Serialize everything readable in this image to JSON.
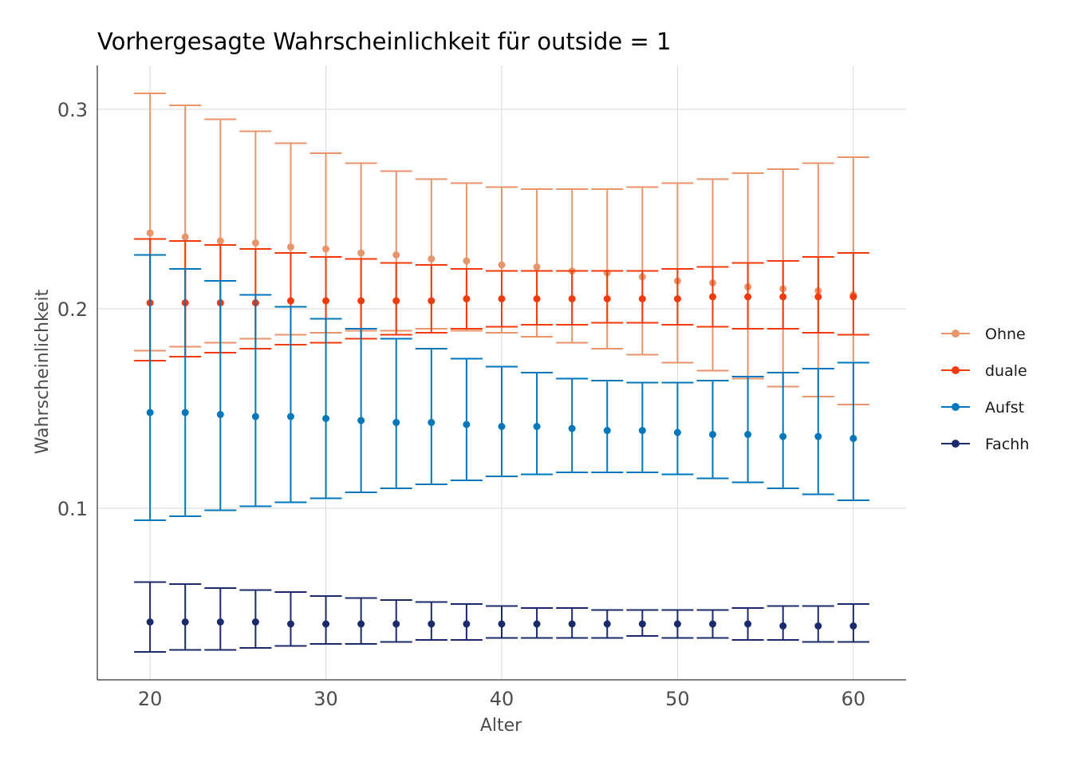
{
  "chart_data": {
    "type": "scatter",
    "title": "Vorhergesagte Wahrscheinlichkeit für outside = 1",
    "xlabel": "Alter",
    "ylabel": "Wahrscheinlichkeit",
    "xlim": [
      17,
      63
    ],
    "ylim": [
      0.014,
      0.322
    ],
    "xticks": [
      20,
      30,
      40,
      50,
      60
    ],
    "yticks": [
      0.1,
      0.2,
      0.3
    ],
    "ytick_labels": [
      "0.1",
      "0.2",
      "0.3"
    ],
    "grid": true,
    "legend_position": "right",
    "x": [
      20,
      22,
      24,
      26,
      28,
      30,
      32,
      34,
      36,
      38,
      40,
      42,
      44,
      46,
      48,
      50,
      52,
      54,
      56,
      58,
      60
    ],
    "series": [
      {
        "name": "Ohne",
        "color": "#e8956c",
        "values": [
          0.238,
          0.236,
          0.234,
          0.233,
          0.231,
          0.23,
          0.228,
          0.227,
          0.225,
          0.224,
          0.222,
          0.221,
          0.219,
          0.218,
          0.216,
          0.214,
          0.213,
          0.211,
          0.21,
          0.209,
          0.207
        ],
        "lower": [
          0.179,
          0.181,
          0.183,
          0.185,
          0.187,
          0.188,
          0.189,
          0.189,
          0.19,
          0.189,
          0.188,
          0.186,
          0.183,
          0.18,
          0.177,
          0.173,
          0.169,
          0.165,
          0.161,
          0.156,
          0.152
        ],
        "upper": [
          0.308,
          0.302,
          0.295,
          0.289,
          0.283,
          0.278,
          0.273,
          0.269,
          0.265,
          0.263,
          0.261,
          0.26,
          0.26,
          0.26,
          0.261,
          0.263,
          0.265,
          0.268,
          0.27,
          0.273,
          0.276
        ]
      },
      {
        "name": "duale",
        "color": "#f23a0c",
        "values": [
          0.203,
          0.203,
          0.203,
          0.203,
          0.204,
          0.204,
          0.204,
          0.204,
          0.204,
          0.205,
          0.205,
          0.205,
          0.205,
          0.205,
          0.205,
          0.205,
          0.206,
          0.206,
          0.206,
          0.206,
          0.206
        ],
        "lower": [
          0.174,
          0.176,
          0.178,
          0.18,
          0.182,
          0.183,
          0.185,
          0.187,
          0.188,
          0.19,
          0.191,
          0.192,
          0.192,
          0.193,
          0.193,
          0.192,
          0.191,
          0.19,
          0.19,
          0.188,
          0.187
        ],
        "upper": [
          0.235,
          0.234,
          0.232,
          0.23,
          0.228,
          0.226,
          0.225,
          0.223,
          0.222,
          0.22,
          0.219,
          0.219,
          0.219,
          0.219,
          0.219,
          0.22,
          0.221,
          0.223,
          0.224,
          0.226,
          0.228
        ]
      },
      {
        "name": "Aufst",
        "color": "#0077bb",
        "values": [
          0.148,
          0.148,
          0.147,
          0.146,
          0.146,
          0.145,
          0.144,
          0.143,
          0.143,
          0.142,
          0.141,
          0.141,
          0.14,
          0.139,
          0.139,
          0.138,
          0.137,
          0.137,
          0.136,
          0.136,
          0.135
        ],
        "lower": [
          0.094,
          0.096,
          0.099,
          0.101,
          0.103,
          0.105,
          0.108,
          0.11,
          0.112,
          0.114,
          0.116,
          0.117,
          0.118,
          0.118,
          0.118,
          0.117,
          0.115,
          0.113,
          0.11,
          0.107,
          0.104
        ],
        "upper": [
          0.227,
          0.22,
          0.214,
          0.207,
          0.201,
          0.195,
          0.19,
          0.185,
          0.18,
          0.175,
          0.171,
          0.168,
          0.165,
          0.164,
          0.163,
          0.163,
          0.164,
          0.166,
          0.168,
          0.17,
          0.173
        ]
      },
      {
        "name": "Fachh",
        "color": "#1b2a6b",
        "values": [
          0.043,
          0.043,
          0.043,
          0.043,
          0.042,
          0.042,
          0.042,
          0.042,
          0.042,
          0.042,
          0.042,
          0.042,
          0.042,
          0.042,
          0.042,
          0.042,
          0.042,
          0.042,
          0.041,
          0.041,
          0.041
        ],
        "lower": [
          0.028,
          0.029,
          0.029,
          0.03,
          0.031,
          0.032,
          0.032,
          0.033,
          0.034,
          0.034,
          0.035,
          0.035,
          0.035,
          0.035,
          0.036,
          0.035,
          0.035,
          0.034,
          0.034,
          0.033,
          0.033
        ],
        "upper": [
          0.063,
          0.062,
          0.06,
          0.059,
          0.058,
          0.056,
          0.055,
          0.054,
          0.053,
          0.052,
          0.051,
          0.05,
          0.05,
          0.049,
          0.049,
          0.049,
          0.049,
          0.05,
          0.051,
          0.051,
          0.052
        ]
      }
    ]
  }
}
